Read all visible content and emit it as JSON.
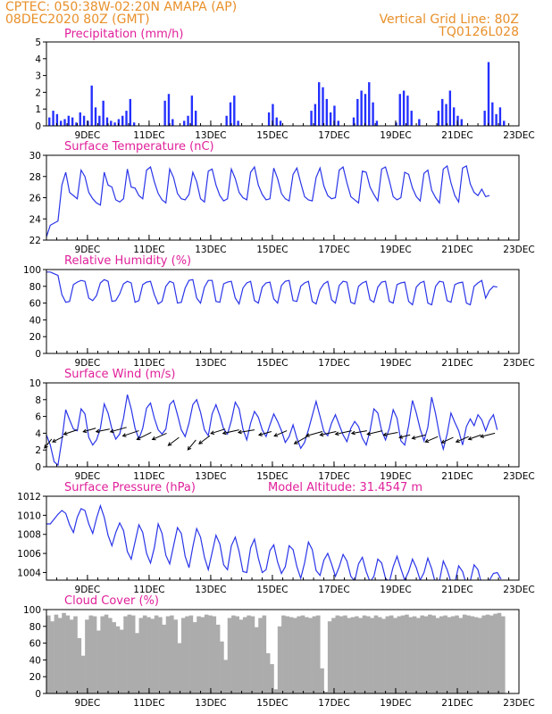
{
  "header": {
    "left_line1": "CPTEC:   050:38W-02:20N   AMAPA (AP)",
    "left_line2": "08DEC2020 80Z (GMT)",
    "right_line1": "Vertical Grid Line: 80Z",
    "right_line2": "TQ0126L028"
  },
  "colors": {
    "header": "#e8902a",
    "title": "#e0209a",
    "line": "#2a35e8",
    "bar": "#2430ff",
    "cloud": "#acacac",
    "arrow": "#000000"
  },
  "x_ticks": [
    "9DEC",
    "11DEC",
    "13DEC",
    "15DEC",
    "17DEC",
    "19DEC",
    "21DEC",
    "23DEC"
  ],
  "chart_data": [
    {
      "type": "bar",
      "id": "precip",
      "title": "Precipitation (mm/h)",
      "ylim": [
        0,
        5
      ],
      "yticks": [
        0,
        1,
        2,
        3,
        4,
        5
      ],
      "x_start": "08DEC2020 00Z",
      "step_hours": 3,
      "values": [
        0.5,
        0.9,
        0.7,
        0.3,
        0.4,
        0.6,
        0.5,
        0.2,
        0.8,
        0.6,
        0.3,
        2.4,
        1.1,
        0.6,
        1.5,
        0.5,
        0.3,
        0.2,
        0.4,
        0.6,
        0.9,
        1.6,
        0.2,
        0,
        0,
        0,
        0,
        0,
        0,
        0,
        1.5,
        1.9,
        0.4,
        0,
        0,
        0.3,
        0.6,
        1.8,
        0.9,
        0,
        0,
        0,
        0,
        0,
        0,
        0,
        0.6,
        1.4,
        1.8,
        0.3,
        0,
        0,
        0,
        0,
        0,
        0,
        0,
        0.8,
        1.3,
        0.5,
        0.3,
        0,
        0,
        0,
        0,
        0,
        0,
        0,
        0.9,
        1.3,
        2.6,
        2.3,
        1.6,
        0.8,
        1.2,
        0.3,
        0,
        0,
        0,
        0.5,
        1.6,
        2.1,
        1.9,
        2.6,
        1.4,
        0.3,
        0,
        0,
        0,
        0,
        0.2,
        1.9,
        2.1,
        1.8,
        0.9,
        0,
        0.4,
        0,
        0,
        0,
        0,
        0.9,
        1.6,
        1.3,
        2.1,
        1.1,
        0.6,
        0.4,
        0,
        0,
        0,
        0,
        0,
        0.9,
        3.8,
        1.4,
        0.7,
        1.1,
        0.3,
        0,
        0,
        0,
        0,
        0,
        0,
        0,
        0,
        0.7,
        0.9,
        1.3,
        0,
        0
      ]
    },
    {
      "type": "line",
      "id": "temp",
      "title": "Surface Temperature (nC)",
      "ylim": [
        22,
        30
      ],
      "yticks": [
        22,
        24,
        26,
        28,
        30
      ],
      "x_start": "08DEC2020 00Z",
      "step_hours": 3,
      "values": [
        22.3,
        23.4,
        23.6,
        23.8,
        27.2,
        28.4,
        26.5,
        26.2,
        25.9,
        28.6,
        28.0,
        26.5,
        25.9,
        25.5,
        25.3,
        28.4,
        27.2,
        27.0,
        25.8,
        25.6,
        25.9,
        28.7,
        27.0,
        26.9,
        26.2,
        25.9,
        28.6,
        28.9,
        27.5,
        26.4,
        25.8,
        25.5,
        28.7,
        27.9,
        26.4,
        25.9,
        25.8,
        26.3,
        28.4,
        27.5,
        25.9,
        25.6,
        28.5,
        28.7,
        27.2,
        26.2,
        25.7,
        25.9,
        28.7,
        27.8,
        26.5,
        26.0,
        25.8,
        28.4,
        28.9,
        27.2,
        26.3,
        25.8,
        25.9,
        28.8,
        27.8,
        26.4,
        25.9,
        25.7,
        28.2,
        28.8,
        27.4,
        26.1,
        25.8,
        25.7,
        27.9,
        28.8,
        27.1,
        26.2,
        25.9,
        26.0,
        28.6,
        28.9,
        27.4,
        26.1,
        25.8,
        25.5,
        28.5,
        28.4,
        27.0,
        26.3,
        25.7,
        28.7,
        28.9,
        27.6,
        26.1,
        25.8,
        26.0,
        28.4,
        28.2,
        26.9,
        26.1,
        25.7,
        28.3,
        28.6,
        26.7,
        26.0,
        25.5,
        28.7,
        29.0,
        27.4,
        26.2,
        25.6,
        28.8,
        29.0,
        27.3,
        26.5,
        26.2,
        26.8,
        26.1,
        26.2
      ]
    },
    {
      "type": "line",
      "id": "rh",
      "title": "Relative Humidity (%)",
      "ylim": [
        0,
        100
      ],
      "yticks": [
        0,
        20,
        40,
        60,
        80,
        100
      ],
      "x_start": "08DEC2020 00Z",
      "step_hours": 3,
      "values": [
        97,
        97,
        95,
        93,
        70,
        61,
        62,
        82,
        85,
        87,
        86,
        66,
        63,
        69,
        84,
        88,
        86,
        62,
        63,
        71,
        83,
        86,
        84,
        61,
        63,
        82,
        85,
        86,
        70,
        59,
        62,
        80,
        86,
        84,
        60,
        61,
        78,
        87,
        88,
        66,
        60,
        79,
        87,
        87,
        62,
        61,
        83,
        85,
        86,
        66,
        59,
        78,
        84,
        86,
        63,
        60,
        79,
        84,
        85,
        65,
        60,
        81,
        86,
        87,
        63,
        62,
        80,
        84,
        86,
        62,
        59,
        76,
        83,
        86,
        64,
        60,
        81,
        86,
        85,
        61,
        59,
        80,
        84,
        86,
        64,
        61,
        79,
        85,
        86,
        62,
        60,
        82,
        84,
        85,
        62,
        58,
        79,
        84,
        86,
        60,
        58,
        80,
        86,
        85,
        63,
        61,
        82,
        84,
        85,
        60,
        58,
        80,
        84,
        87,
        66,
        75,
        80,
        79
      ]
    },
    {
      "type": "line",
      "id": "wind",
      "title": "Surface Wind (m/s)",
      "ylim": [
        0,
        10
      ],
      "yticks": [
        0,
        2,
        4,
        6,
        8,
        10
      ],
      "x_start": "08DEC2020 00Z",
      "step_hours": 3,
      "values": [
        3.8,
        2.6,
        0.6,
        0.2,
        3.2,
        6.8,
        5.6,
        4.5,
        4.3,
        6.9,
        6.3,
        3.5,
        2.6,
        3.2,
        4.6,
        7.5,
        6.4,
        4.5,
        3.3,
        3.9,
        5.8,
        8.6,
        6.9,
        4.6,
        3.3,
        4.6,
        7.0,
        7.6,
        5.8,
        4.4,
        3.9,
        4.5,
        7.4,
        7.9,
        6.2,
        4.4,
        3.6,
        5.2,
        7.4,
        8.0,
        6.5,
        4.4,
        3.7,
        6.3,
        7.4,
        6.1,
        4.5,
        3.9,
        5.5,
        7.7,
        6.9,
        4.5,
        3.2,
        5.2,
        6.6,
        5.9,
        4.4,
        3.6,
        5.0,
        6.3,
        5.4,
        4.3,
        2.9,
        3.6,
        5.0,
        3.4,
        2.2,
        2.9,
        4.4,
        6.1,
        7.8,
        6.0,
        4.2,
        3.7,
        5.2,
        6.2,
        5.0,
        3.8,
        3.0,
        4.6,
        5.4,
        4.8,
        3.4,
        2.6,
        4.3,
        6.9,
        6.4,
        4.3,
        3.2,
        4.6,
        6.8,
        5.8,
        3.1,
        2.6,
        4.9,
        7.9,
        6.4,
        4.5,
        3.1,
        4.7,
        8.3,
        6.3,
        3.8,
        2.1,
        3.9,
        6.4,
        5.3,
        4.3,
        2.6,
        4.8,
        5.7,
        4.9,
        6.2,
        5.6,
        4.3,
        5.5,
        6.2,
        4.4
      ],
      "arrows": [
        [
          0.17,
          3.3,
          -8,
          -10
        ],
        [
          0.55,
          3.6,
          -12,
          -6
        ],
        [
          1.0,
          4.4,
          -15,
          -5
        ],
        [
          1.6,
          4.6,
          -14,
          -4
        ],
        [
          2.05,
          4.5,
          -15,
          -3
        ],
        [
          2.6,
          4.7,
          -18,
          -5
        ],
        [
          3.0,
          4.3,
          -18,
          -6
        ],
        [
          3.4,
          4.1,
          -16,
          -8
        ],
        [
          3.9,
          4.0,
          -16,
          -7
        ],
        [
          4.3,
          3.5,
          -12,
          -9
        ],
        [
          4.85,
          3.2,
          -9,
          -11
        ],
        [
          5.3,
          3.7,
          -12,
          -9
        ],
        [
          5.8,
          4.5,
          -16,
          -5
        ],
        [
          6.25,
          4.4,
          -18,
          -4
        ],
        [
          6.75,
          4.4,
          -18,
          -3
        ],
        [
          7.3,
          4.2,
          -14,
          -4
        ],
        [
          7.8,
          4.3,
          -14,
          -6
        ],
        [
          8.45,
          3.6,
          -14,
          -8
        ],
        [
          8.95,
          4.2,
          -18,
          -5
        ],
        [
          9.4,
          4.2,
          -18,
          -4
        ],
        [
          9.9,
          4.3,
          -18,
          -4
        ],
        [
          10.4,
          4.3,
          -17,
          -3
        ],
        [
          10.9,
          4.3,
          -17,
          -4
        ],
        [
          11.4,
          4.1,
          -16,
          -3
        ],
        [
          11.8,
          3.8,
          -12,
          -3
        ],
        [
          12.3,
          3.8,
          -15,
          -4
        ],
        [
          12.7,
          3.6,
          -14,
          -6
        ],
        [
          13.2,
          3.5,
          -13,
          -6
        ],
        [
          13.7,
          3.6,
          -14,
          -6
        ],
        [
          14.1,
          3.8,
          -14,
          -5
        ],
        [
          14.55,
          4.0,
          -16,
          -4
        ]
      ]
    },
    {
      "type": "line",
      "id": "pres",
      "title": "Surface Pressure (hPa)",
      "annotation": "Model Altitude: 31.4547 m",
      "ylim": [
        1003.2,
        1012
      ],
      "yticks": [
        1004,
        1006,
        1008,
        1010,
        1012
      ],
      "x_start": "08DEC2020 00Z",
      "step_hours": 3,
      "values": [
        1009.1,
        1009.1,
        1009.6,
        1010.1,
        1010.5,
        1010.2,
        1009.0,
        1008.2,
        1009.8,
        1010.7,
        1010.5,
        1009.1,
        1008.1,
        1009.7,
        1011.0,
        1009.8,
        1007.9,
        1006.8,
        1008.2,
        1009.2,
        1008.4,
        1006.2,
        1005.4,
        1007.2,
        1009.0,
        1008.2,
        1006.0,
        1005.0,
        1006.6,
        1009.1,
        1008.1,
        1005.8,
        1004.9,
        1006.8,
        1008.7,
        1008.1,
        1005.7,
        1004.5,
        1006.7,
        1008.6,
        1007.7,
        1005.6,
        1004.3,
        1006.1,
        1007.9,
        1007.0,
        1004.8,
        1004.3,
        1006.8,
        1007.7,
        1006.2,
        1004.1,
        1004.0,
        1006.6,
        1007.5,
        1005.5,
        1004.0,
        1004.3,
        1006.3,
        1006.9,
        1005.1,
        1003.9,
        1004.6,
        1006.8,
        1006.4,
        1004.6,
        1003.4,
        1005.0,
        1007.2,
        1006.4,
        1004.2,
        1003.7,
        1005.3,
        1006.0,
        1004.9,
        1003.6,
        1004.6,
        1005.9,
        1005.2,
        1003.6,
        1003.1,
        1004.9,
        1005.6,
        1004.1,
        1003.0,
        1003.6,
        1005.4,
        1005.0,
        1003.4,
        1003.0,
        1004.6,
        1005.7,
        1004.4,
        1003.2,
        1004.1,
        1005.4,
        1004.5,
        1003.2,
        1004.0,
        1005.5,
        1004.4,
        1002.8,
        1003.1,
        1005.2,
        1004.3,
        1003.0,
        1002.9,
        1004.7,
        1004.1,
        1002.7,
        1003.1,
        1004.8,
        1004.3,
        1002.7,
        1002.4,
        1003.2,
        1003.9,
        1004.0,
        1003.3
      ]
    },
    {
      "type": "area",
      "id": "cloud",
      "title": "Cloud Cover (%)",
      "ylim": [
        0,
        100
      ],
      "yticks": [
        0,
        20,
        40,
        60,
        80,
        100
      ],
      "x_start": "08DEC2020 00Z",
      "step_hours": 3,
      "values": [
        93,
        86,
        94,
        90,
        96,
        93,
        88,
        92,
        66,
        45,
        88,
        93,
        92,
        75,
        92,
        94,
        90,
        85,
        80,
        76,
        92,
        94,
        93,
        72,
        90,
        93,
        91,
        89,
        93,
        91,
        82,
        92,
        93,
        88,
        60,
        90,
        92,
        93,
        85,
        92,
        91,
        94,
        93,
        92,
        82,
        62,
        40,
        90,
        93,
        92,
        88,
        91,
        93,
        92,
        79,
        90,
        93,
        48,
        35,
        5,
        80,
        93,
        92,
        91,
        90,
        92,
        93,
        91,
        90,
        92,
        93,
        30,
        2,
        86,
        90,
        93,
        92,
        93,
        90,
        91,
        92,
        90,
        93,
        92,
        90,
        93,
        91,
        89,
        92,
        93,
        90,
        92,
        93,
        94,
        91,
        92,
        90,
        93,
        92,
        94,
        93,
        90,
        92,
        93,
        91,
        92,
        93,
        90,
        94,
        93,
        92,
        91,
        90,
        93,
        94,
        93,
        95,
        96,
        92
      ]
    }
  ]
}
